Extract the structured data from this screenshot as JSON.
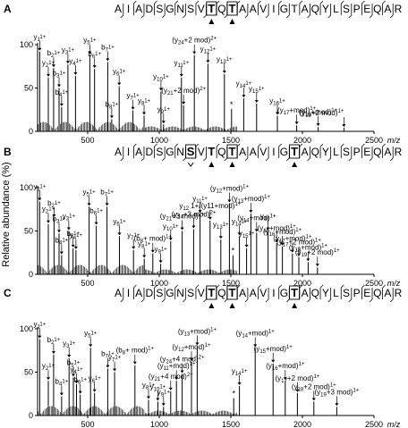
{
  "figure": {
    "ylabel": "Relative abundance (%)",
    "xunit": "m/z"
  },
  "chart_data": [
    {
      "type": "bar",
      "panel": "A",
      "sequence": [
        "A",
        "I",
        "A",
        "D",
        "S",
        "G",
        "N",
        "S",
        "V",
        "T",
        "Q",
        "T",
        "A",
        "A",
        "V",
        "I",
        "G",
        "T",
        "A",
        "Q",
        "Y",
        "L",
        "S",
        "P",
        "E",
        "Q",
        "A",
        "R"
      ],
      "bold_residues": [
        9,
        11
      ],
      "box_residues": [
        9,
        11
      ],
      "up_markers": [
        9,
        11
      ],
      "down_markers": [],
      "xlim": [
        150,
        2500
      ],
      "xticks": [
        500,
        1000,
        1500,
        2000,
        2500
      ],
      "ylim": [
        0,
        100
      ],
      "yticks": [
        0,
        50,
        100
      ],
      "peaks": [
        {
          "x": 165,
          "y": 92,
          "label": "y1 1+"
        },
        {
          "x": 225,
          "y": 62,
          "label": "y2 1+"
        },
        {
          "x": 262,
          "y": 73,
          "label": "b2 1+"
        },
        {
          "x": 300,
          "y": 50,
          "label": "b3 1+"
        },
        {
          "x": 318,
          "y": 28,
          "label": "b4 1+"
        },
        {
          "x": 362,
          "y": 77,
          "label": "y3 1+"
        },
        {
          "x": 415,
          "y": 64,
          "label": "y4 1+"
        },
        {
          "x": 515,
          "y": 88,
          "label": "y5 1+"
        },
        {
          "x": 548,
          "y": 72,
          "label": "b6 1+"
        },
        {
          "x": 640,
          "y": 80,
          "label": "b7 1+"
        },
        {
          "x": 668,
          "y": 14,
          "label": "b8 1+"
        },
        {
          "x": 720,
          "y": 52,
          "label": "y6 1+"
        },
        {
          "x": 816,
          "y": 24,
          "label": "y7 1+"
        },
        {
          "x": 894,
          "y": 18,
          "label": "y8 1+"
        },
        {
          "x": 1012,
          "y": 46,
          "label": "y10 1+"
        },
        {
          "x": 1030,
          "y": 8,
          "label": "y9 1+"
        },
        {
          "x": 1155,
          "y": 62,
          "label": "y11 1+"
        },
        {
          "x": 1170,
          "y": 30,
          "label": "(y21+2 mod) 2+"
        },
        {
          "x": 1245,
          "y": 88,
          "label": "(y24+2 mod) 2+"
        },
        {
          "x": 1340,
          "y": 78,
          "label": "y12 1+"
        },
        {
          "x": 1455,
          "y": 66,
          "label": "y13 1+"
        },
        {
          "x": 1505,
          "y": 26,
          "label": "*"
        },
        {
          "x": 1590,
          "y": 38,
          "label": "y14 1+"
        },
        {
          "x": 1680,
          "y": 32,
          "label": "y15 1+"
        },
        {
          "x": 1825,
          "y": 18,
          "label": "y16 1+"
        },
        {
          "x": 1960,
          "y": 7,
          "label": "(y17+mod) 1+"
        },
        {
          "x": 2110,
          "y": 5,
          "label": "(y18+mod) 1+"
        },
        {
          "x": 2290,
          "y": 4,
          "label": "(y19+2 mod) 1+"
        }
      ]
    },
    {
      "type": "bar",
      "panel": "B",
      "sequence": [
        "A",
        "I",
        "A",
        "D",
        "S",
        "G",
        "N",
        "S",
        "V",
        "T",
        "Q",
        "T",
        "A",
        "A",
        "V",
        "I",
        "G",
        "T",
        "A",
        "Q",
        "Y",
        "L",
        "S",
        "P",
        "E",
        "Q",
        "A",
        "R"
      ],
      "bold_residues": [
        7,
        9,
        11,
        17
      ],
      "box_residues": [
        7,
        11,
        17
      ],
      "up_markers": [
        9,
        11,
        17
      ],
      "down_markers": [
        7
      ],
      "xlim": [
        150,
        2500
      ],
      "xticks": [
        500,
        1000,
        1500,
        2000,
        2500
      ],
      "ylim": [
        0,
        100
      ],
      "yticks": [
        0,
        50,
        100
      ],
      "peaks": [
        {
          "x": 165,
          "y": 84,
          "label": "y1 1+"
        },
        {
          "x": 225,
          "y": 58,
          "label": "y2 1+"
        },
        {
          "x": 265,
          "y": 65,
          "label": "b2 1+"
        },
        {
          "x": 300,
          "y": 47,
          "label": "b3 1+"
        },
        {
          "x": 318,
          "y": 22,
          "label": "b4 1+"
        },
        {
          "x": 368,
          "y": 50,
          "label": "y3 1+"
        },
        {
          "x": 398,
          "y": 30,
          "label": "b5 1+"
        },
        {
          "x": 418,
          "y": 28,
          "label": "y4 1+"
        },
        {
          "x": 510,
          "y": 78,
          "label": "y5 1+"
        },
        {
          "x": 560,
          "y": 56,
          "label": "b6 1+"
        },
        {
          "x": 635,
          "y": 78,
          "label": "b7 1+"
        },
        {
          "x": 722,
          "y": 44,
          "label": "y6 1+"
        },
        {
          "x": 820,
          "y": 28,
          "label": "y7 1+"
        },
        {
          "x": 895,
          "y": 18,
          "label": "y8 1+"
        },
        {
          "x": 955,
          "y": 24,
          "label": "(b8+ mod) 1+"
        },
        {
          "x": 1010,
          "y": 12,
          "label": "y9 1+"
        },
        {
          "x": 1080,
          "y": 38,
          "label": "y10 1+"
        },
        {
          "x": 1160,
          "y": 50,
          "label": "(y21+3 mod) 2+"
        },
        {
          "x": 1240,
          "y": 52,
          "label": "(y24+3 mod) 2+"
        },
        {
          "x": 1285,
          "y": 70,
          "label": "y11 1+"
        },
        {
          "x": 1355,
          "y": 62,
          "label": "y12 1+/(y11+mod) 1+"
        },
        {
          "x": 1430,
          "y": 40,
          "label": "y13 1+"
        },
        {
          "x": 1490,
          "y": 82,
          "label": "(y12+mod) 1+"
        },
        {
          "x": 1515,
          "y": 22,
          "label": "*"
        },
        {
          "x": 1560,
          "y": 44,
          "label": "y14 1+"
        },
        {
          "x": 1610,
          "y": 30,
          "label": "y15 1+"
        },
        {
          "x": 1640,
          "y": 70,
          "label": "(y13+mod) 1+"
        },
        {
          "x": 1680,
          "y": 48,
          "label": "(y14+mod) 1+"
        },
        {
          "x": 1760,
          "y": 50,
          "label": "y16 1+"
        },
        {
          "x": 1820,
          "y": 36,
          "label": "(y15+mod) 1+"
        },
        {
          "x": 1860,
          "y": 32,
          "label": "(y16+mod) 1+"
        },
        {
          "x": 1930,
          "y": 24,
          "label": "(y17+mod) 1+"
        },
        {
          "x": 1975,
          "y": 20,
          "label": "(y17+2 mod) 1+"
        },
        {
          "x": 2040,
          "y": 14,
          "label": "(y18+mod) 1+"
        },
        {
          "x": 2105,
          "y": 8,
          "label": "(y19+2 mod) 1+"
        }
      ]
    },
    {
      "type": "bar",
      "panel": "C",
      "sequence": [
        "A",
        "I",
        "A",
        "D",
        "S",
        "G",
        "N",
        "S",
        "V",
        "T",
        "Q",
        "T",
        "A",
        "A",
        "V",
        "I",
        "G",
        "T",
        "A",
        "Q",
        "Y",
        "L",
        "S",
        "P",
        "E",
        "Q",
        "A",
        "R"
      ],
      "bold_residues": [
        9,
        11,
        17
      ],
      "box_residues": [
        9,
        11,
        17
      ],
      "up_markers": [
        9,
        11,
        17
      ],
      "down_markers": [],
      "xlim": [
        150,
        2500
      ],
      "xticks": [
        500,
        1000,
        1500,
        2000,
        2500
      ],
      "ylim": [
        0,
        100
      ],
      "yticks": [
        0,
        50,
        100
      ],
      "peaks": [
        {
          "x": 165,
          "y": 88,
          "label": "y1 1+"
        },
        {
          "x": 225,
          "y": 40,
          "label": "y2 1+"
        },
        {
          "x": 262,
          "y": 70,
          "label": "b2 1+"
        },
        {
          "x": 318,
          "y": 22,
          "label": "b4 1+"
        },
        {
          "x": 370,
          "y": 66,
          "label": "y3 1+"
        },
        {
          "x": 400,
          "y": 44,
          "label": "b5 1+"
        },
        {
          "x": 422,
          "y": 36,
          "label": "y4 1+"
        },
        {
          "x": 448,
          "y": 24,
          "label": "b6 1+"
        },
        {
          "x": 520,
          "y": 78,
          "label": "y5 1+"
        },
        {
          "x": 548,
          "y": 26,
          "label": "y6 1+"
        },
        {
          "x": 640,
          "y": 54,
          "label": "b7 1+"
        },
        {
          "x": 688,
          "y": 50,
          "label": "y7 1+"
        },
        {
          "x": 830,
          "y": 58,
          "label": "(b8+ mod) 1+"
        },
        {
          "x": 925,
          "y": 18,
          "label": "y8 1+"
        },
        {
          "x": 990,
          "y": 16,
          "label": "y10 1+"
        },
        {
          "x": 1030,
          "y": 10,
          "label": "y9 1+"
        },
        {
          "x": 1080,
          "y": 28,
          "label": "(y21+4 mod) 2+"
        },
        {
          "x": 1120,
          "y": 40,
          "label": "(y11+mod) 1+"
        },
        {
          "x": 1160,
          "y": 48,
          "label": "(y24+4 mod) 2+"
        },
        {
          "x": 1225,
          "y": 62,
          "label": "(y12+mod) 1+"
        },
        {
          "x": 1265,
          "y": 80,
          "label": "(y13+mod) 1+"
        },
        {
          "x": 1520,
          "y": 20,
          "label": "*"
        },
        {
          "x": 1560,
          "y": 34,
          "label": "y14 1+"
        },
        {
          "x": 1670,
          "y": 78,
          "label": "(y14+mod) 1+"
        },
        {
          "x": 1795,
          "y": 60,
          "label": "(y15+mod) 1+"
        },
        {
          "x": 1880,
          "y": 40,
          "label": "(y16+mod) 1+"
        },
        {
          "x": 1965,
          "y": 26,
          "label": "(y17+2 mod) 1+"
        },
        {
          "x": 2080,
          "y": 16,
          "label": "(y18+2 mod) 1+"
        },
        {
          "x": 2240,
          "y": 10,
          "label": "(y19+3 mod) 1+"
        }
      ]
    }
  ]
}
